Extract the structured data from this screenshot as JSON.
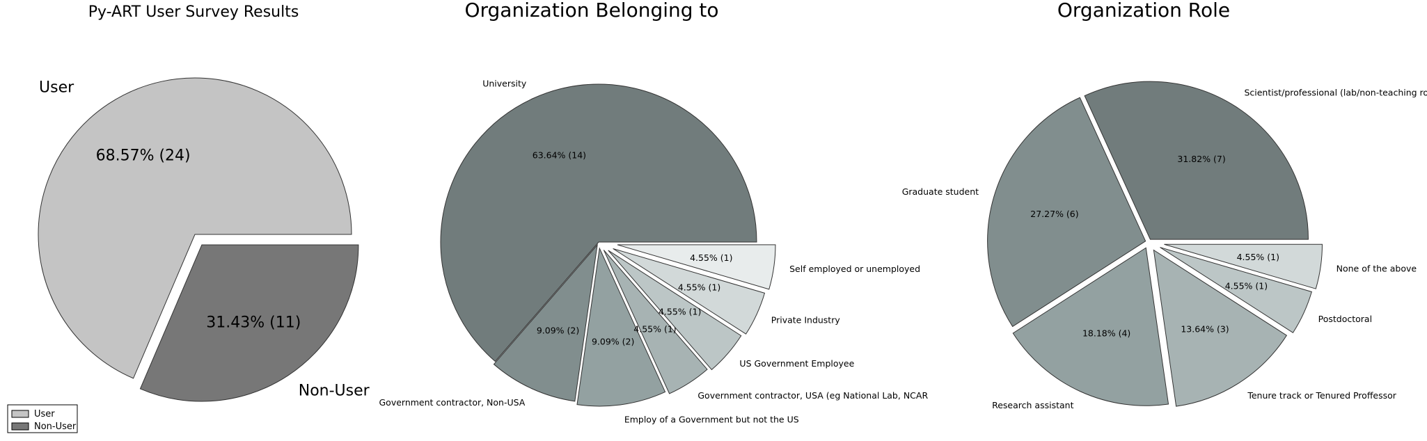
{
  "chart_data": [
    {
      "type": "pie",
      "title": "Py-ART User Survey Results",
      "slices": [
        {
          "label": "User",
          "value": 24,
          "pct_label": "68.57%  (24)",
          "color": "#c4c4c4"
        },
        {
          "label": "Non-User",
          "value": 11,
          "pct_label": "31.43%  (11)",
          "color": "#777777"
        }
      ],
      "legend": {
        "position": "lower-left",
        "entries": [
          "User",
          "Non-User"
        ]
      }
    },
    {
      "type": "pie",
      "title": "Organization Belonging to",
      "slices": [
        {
          "label": "University",
          "value": 14,
          "pct_label": "63.64%  (14)",
          "color": "#717c7c"
        },
        {
          "label": "Government contractor, Non-USA",
          "value": 2,
          "pct_label": "9.09%  (2)",
          "color": "#818e8e"
        },
        {
          "label": "Employ of a Government but not the US",
          "value": 2,
          "pct_label": "9.09%  (2)",
          "color": "#93a1a1"
        },
        {
          "label": "Government contractor, USA (eg National Lab, NCAR",
          "value": 1,
          "pct_label": "4.55%  (1)",
          "color": "#a7b3b3"
        },
        {
          "label": "US Government Employee",
          "value": 1,
          "pct_label": "4.55%  (1)",
          "color": "#bcc6c6"
        },
        {
          "label": "Private Industry",
          "value": 1,
          "pct_label": "4.55%  (1)",
          "color": "#d2d9d9"
        },
        {
          "label": "Self employed or unemployed",
          "value": 1,
          "pct_label": "4.55%  (1)",
          "color": "#e8ecec"
        }
      ]
    },
    {
      "type": "pie",
      "title": "Organization Role",
      "slices": [
        {
          "label": "Scientist/professional (lab/non-teaching role)",
          "value": 7,
          "pct_label": "31.82%  (7)",
          "color": "#717c7c"
        },
        {
          "label": "Graduate student",
          "value": 6,
          "pct_label": "27.27%  (6)",
          "color": "#818e8e"
        },
        {
          "label": "Research assistant",
          "value": 4,
          "pct_label": "18.18%  (4)",
          "color": "#93a1a1"
        },
        {
          "label": "Tenure track or Tenured Proffessor",
          "value": 3,
          "pct_label": "13.64%  (3)",
          "color": "#a7b3b3"
        },
        {
          "label": "Postdoctoral",
          "value": 1,
          "pct_label": "4.55%  (1)",
          "color": "#bcc6c6"
        },
        {
          "label": "None of the above",
          "value": 1,
          "pct_label": "4.55%  (1)",
          "color": "#d2d9d9"
        }
      ]
    }
  ]
}
